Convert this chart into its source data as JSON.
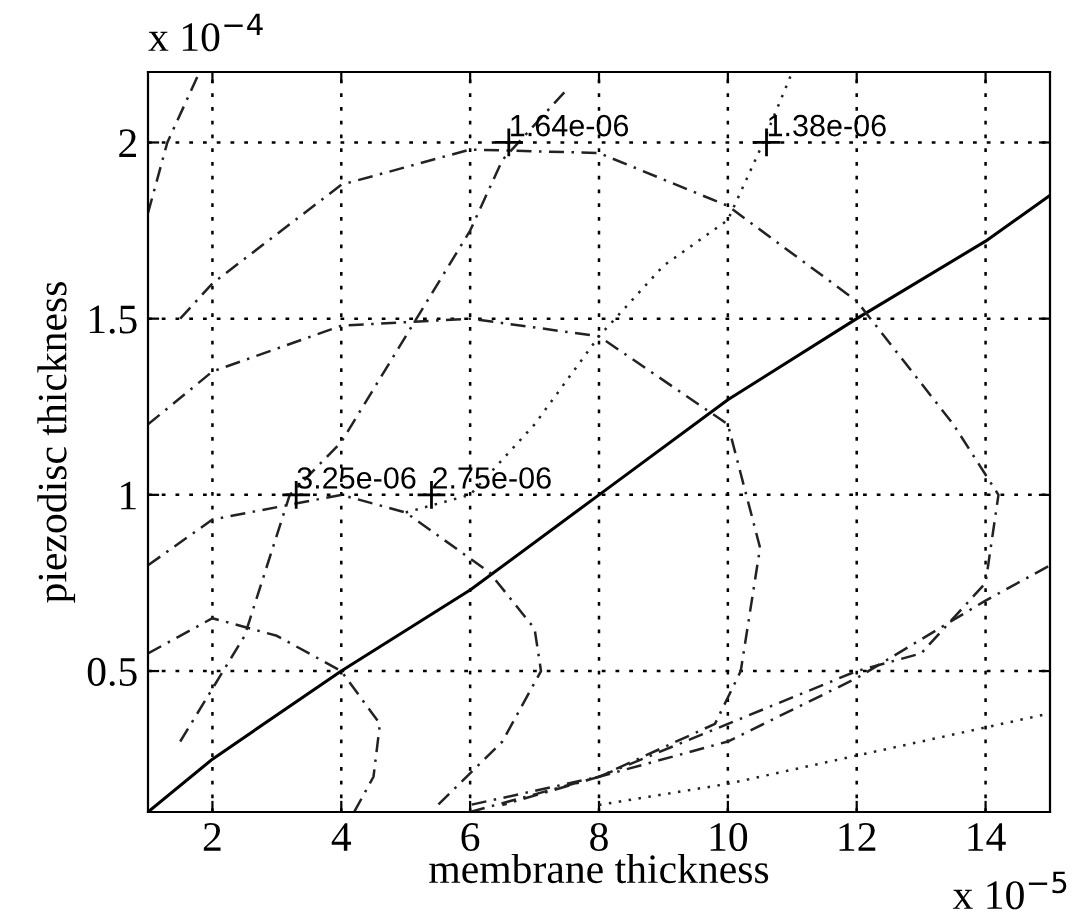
{
  "chart_data": {
    "type": "line",
    "xlabel": "membrane thickness",
    "ylabel": "piezodisc thickness",
    "xlim": [
      1,
      15
    ],
    "ylim": [
      0.1,
      2.2
    ],
    "xticks": [
      2,
      4,
      6,
      8,
      10,
      12,
      14
    ],
    "yticks": [
      0.5,
      1,
      1.5,
      2
    ],
    "grid": true,
    "legend": false,
    "marker": "none",
    "series": [
      {
        "color": "#000000",
        "line_style": "solid",
        "x": [
          1,
          2,
          4,
          6,
          8,
          10,
          12,
          14,
          15
        ],
        "values": [
          0.1,
          0.25,
          0.5,
          0.73,
          1.0,
          1.27,
          1.5,
          1.72,
          1.85
        ]
      },
      {
        "color": "#222222",
        "line_style": "dashed",
        "x": [
          1.5,
          2,
          4,
          6,
          8,
          10,
          12,
          13.5,
          14.2,
          14,
          13,
          12,
          10,
          8,
          6
        ],
        "values": [
          1.5,
          1.6,
          1.88,
          1.98,
          1.97,
          1.82,
          1.55,
          1.2,
          1.0,
          0.75,
          0.55,
          0.5,
          0.35,
          0.2,
          0.12
        ]
      },
      {
        "color": "#222222",
        "line_style": "dashed",
        "x": [
          1,
          2,
          4,
          6,
          8,
          10,
          10.5,
          10.2,
          9.8,
          8,
          6.5
        ],
        "values": [
          1.2,
          1.35,
          1.48,
          1.5,
          1.45,
          1.2,
          0.85,
          0.5,
          0.35,
          0.2,
          0.12
        ]
      },
      {
        "color": "#222222",
        "line_style": "dashed",
        "x": [
          1,
          2,
          4,
          5,
          6.3,
          7,
          7.1,
          6.5,
          5.5
        ],
        "values": [
          0.8,
          0.93,
          1.0,
          0.95,
          0.78,
          0.62,
          0.5,
          0.3,
          0.12
        ]
      },
      {
        "color": "#222222",
        "line_style": "dashed",
        "x": [
          1,
          2,
          3,
          4,
          4.6,
          4.5,
          4.2
        ],
        "values": [
          0.55,
          0.65,
          0.6,
          0.5,
          0.35,
          0.2,
          0.1
        ]
      },
      {
        "color": "#222222",
        "line_style": "dashed",
        "x": [
          1.5,
          2.5,
          3.2,
          4,
          5,
          6,
          6.5,
          7,
          7.5
        ],
        "values": [
          0.3,
          0.6,
          1.0,
          1.15,
          1.45,
          1.75,
          1.95,
          2.05,
          2.15
        ]
      },
      {
        "color": "#222222",
        "line_style": "dotted",
        "x": [
          5,
          6,
          7,
          8,
          9,
          10,
          10.5,
          11
        ],
        "values": [
          0.95,
          1.0,
          1.2,
          1.45,
          1.65,
          1.78,
          1.98,
          2.2
        ]
      },
      {
        "color": "#222222",
        "line_style": "dashed",
        "x": [
          1,
          1.3,
          1.8
        ],
        "values": [
          1.8,
          2.0,
          2.2
        ]
      },
      {
        "color": "#222222",
        "line_style": "dashed",
        "x": [
          6,
          8,
          10,
          12,
          14,
          15
        ],
        "values": [
          0.1,
          0.2,
          0.3,
          0.48,
          0.7,
          0.8
        ]
      },
      {
        "color": "#222222",
        "line_style": "dotted",
        "x": [
          8,
          10,
          12,
          14,
          15
        ],
        "values": [
          0.12,
          0.18,
          0.26,
          0.34,
          0.38
        ]
      }
    ],
    "annotations": [
      {
        "text": "1.64e-06",
        "x": 6.6,
        "y": 2.0
      },
      {
        "text": "1.38e-06",
        "x": 10.6,
        "y": 2.0
      },
      {
        "text": "3.25e-06",
        "x": 3.3,
        "y": 1.0
      },
      {
        "text": "2.75e-06",
        "x": 5.4,
        "y": 1.0
      },
      "x 10$^{−4}$",
      "x 10$^{−5}$"
    ]
  }
}
